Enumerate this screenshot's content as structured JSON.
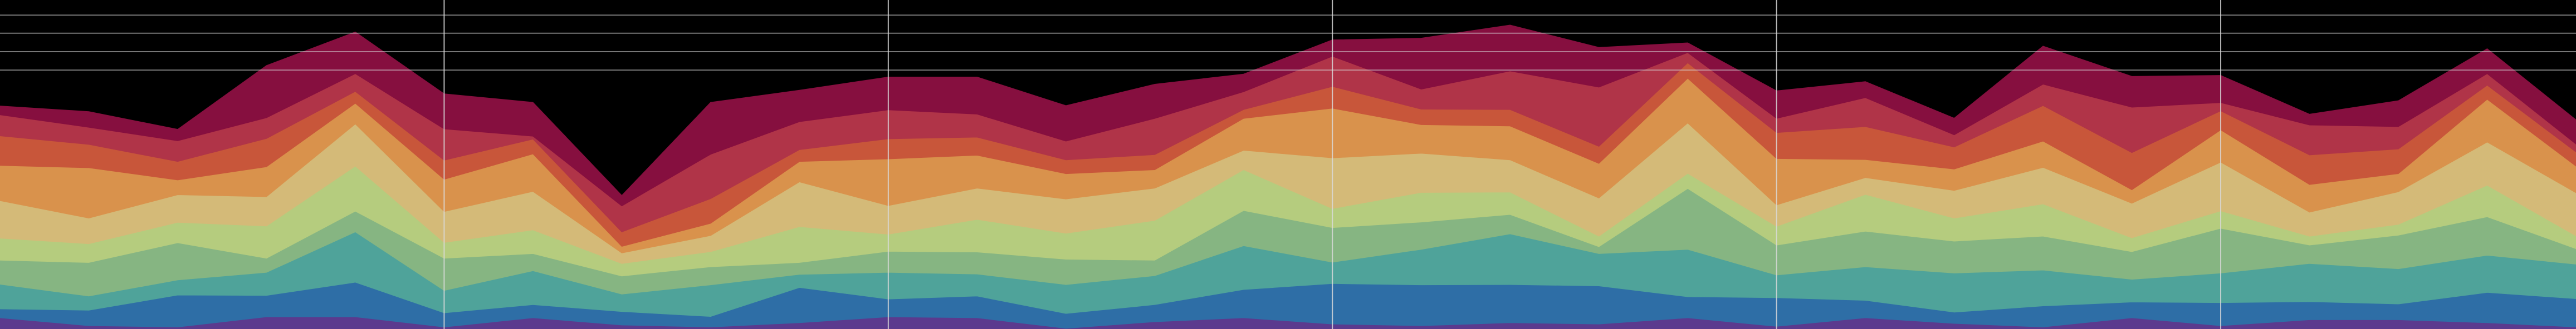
{
  "chart_data": {
    "type": "area",
    "stacked": true,
    "x": [
      0,
      1,
      2,
      3,
      4,
      5,
      6,
      7,
      8,
      9,
      10,
      11,
      12,
      13,
      14,
      15,
      16,
      17,
      18,
      19,
      20,
      21,
      22,
      23,
      24,
      25,
      26,
      27,
      28,
      29
    ],
    "xlim": [
      0,
      29
    ],
    "ylim": [
      0,
      100
    ],
    "grid": true,
    "x_gridlines": [
      5,
      10,
      15,
      20,
      25
    ],
    "y_gridlines": [
      78.7,
      84.3,
      89.9,
      95.4
    ],
    "series": [
      {
        "color": "#5b3a8e",
        "values": [
          3.4,
          1.0,
          0.6,
          3.7,
          3.7,
          0.6,
          3.4,
          1.2,
          0.6,
          1.9,
          3.7,
          3.4,
          0.2,
          2.2,
          3.4,
          1.5,
          1.0,
          1.9,
          1.5,
          3.4,
          0.8,
          3.4,
          1.7,
          0.6,
          3.4,
          1.0,
          2.8,
          2.8,
          1.9,
          0.6
        ]
      },
      {
        "color": "#2e6ea6",
        "values": [
          2.7,
          4.7,
          9.7,
          6.5,
          10.5,
          4.3,
          4.0,
          4.1,
          3.2,
          10.7,
          5.4,
          6.6,
          4.5,
          5.2,
          8.6,
          12.3,
          12.4,
          11.6,
          11.6,
          6.4,
          8.7,
          5.3,
          3.4,
          6.4,
          4.8,
          7.0,
          5.5,
          4.8,
          9.2,
          8.6
        ]
      },
      {
        "color": "#4fa39a",
        "values": [
          7.5,
          4.3,
          4.6,
          7.0,
          15.3,
          6.8,
          10.3,
          5.3,
          9.6,
          4.0,
          8.1,
          6.7,
          8.8,
          8.8,
          13.3,
          6.5,
          10.8,
          15.4,
          9.8,
          14.4,
          6.9,
          10.2,
          11.9,
          10.9,
          6.9,
          9.0,
          11.6,
          10.7,
          11.3,
          10.5
        ]
      },
      {
        "color": "#86b582",
        "values": [
          7.3,
          10.2,
          11.3,
          4.3,
          6.3,
          9.8,
          5.2,
          5.5,
          5.5,
          3.6,
          6.4,
          6.7,
          7.7,
          4.7,
          10.7,
          10.5,
          8.3,
          5.9,
          2.1,
          18.5,
          9.1,
          10.8,
          9.7,
          10.3,
          8.4,
          13.6,
          5.6,
          10.2,
          11.7,
          4.7
        ]
      },
      {
        "color": "#b5cc7e",
        "values": [
          6.7,
          5.7,
          6.2,
          9.8,
          13.7,
          4.8,
          7.2,
          3.8,
          4.6,
          10.9,
          5.2,
          9.9,
          7.9,
          12.1,
          12.4,
          5.8,
          9.0,
          6.8,
          3.2,
          4.6,
          5.7,
          11.2,
          7.0,
          9.8,
          4.2,
          5.3,
          2.7,
          3.3,
          9.6,
          3.9
        ]
      },
      {
        "color": "#d4ba78",
        "values": [
          11.4,
          7.8,
          8.4,
          8.9,
          12.8,
          9.4,
          11.7,
          3.2,
          4.9,
          13.6,
          8.7,
          9.5,
          10.4,
          9.8,
          5.9,
          15.4,
          11.9,
          9.8,
          11.6,
          15.3,
          6.5,
          5.1,
          8.4,
          11.1,
          10.5,
          14.8,
          7.3,
          9.9,
          13.1,
          13.1
        ]
      },
      {
        "color": "#d9924c",
        "values": [
          10.7,
          15.3,
          4.5,
          9.1,
          6.3,
          9.8,
          11.4,
          2.0,
          3.7,
          6.2,
          14.2,
          10.0,
          7.7,
          5.6,
          9.7,
          15.1,
          8.7,
          10.3,
          10.5,
          13.6,
          14.1,
          5.5,
          6.5,
          8.0,
          4.1,
          9.8,
          8.4,
          5.5,
          13.0,
          8.1
        ]
      },
      {
        "color": "#c8563a",
        "values": [
          9.0,
          7.1,
          5.6,
          8.6,
          3.6,
          5.8,
          4.5,
          4.4,
          7.5,
          3.6,
          6.1,
          5.5,
          4.2,
          4.6,
          2.7,
          6.6,
          4.7,
          5.0,
          5.2,
          4.7,
          7.9,
          10.0,
          6.7,
          10.8,
          11.3,
          5.8,
          9.0,
          7.5,
          4.3,
          4.3
        ]
      },
      {
        "color": "#b03448",
        "values": [
          6.4,
          5.2,
          6.3,
          6.3,
          5.4,
          9.5,
          0.9,
          7.9,
          13.5,
          8.5,
          8.8,
          7.0,
          5.7,
          11.0,
          5.4,
          9.2,
          6.1,
          11.7,
          18.0,
          3.1,
          4.3,
          8.8,
          3.7,
          6.5,
          13.8,
          2.5,
          9.1,
          6.8,
          3.5,
          2.4
        ]
      },
      {
        "color": "#860f3f",
        "values": [
          2.7,
          4.8,
          3.5,
          15.9,
          12.7,
          10.7,
          10.3,
          3.2,
          15.8,
          9.6,
          10.0,
          11.3,
          10.8,
          10.4,
          5.4,
          5.0,
          15.5,
          14.0,
          12.1,
          3.0,
          8.4,
          4.9,
          5.1,
          11.6,
          9.4,
          8.3,
          3.3,
          7.9,
          7.6,
          7.4
        ]
      }
    ]
  }
}
